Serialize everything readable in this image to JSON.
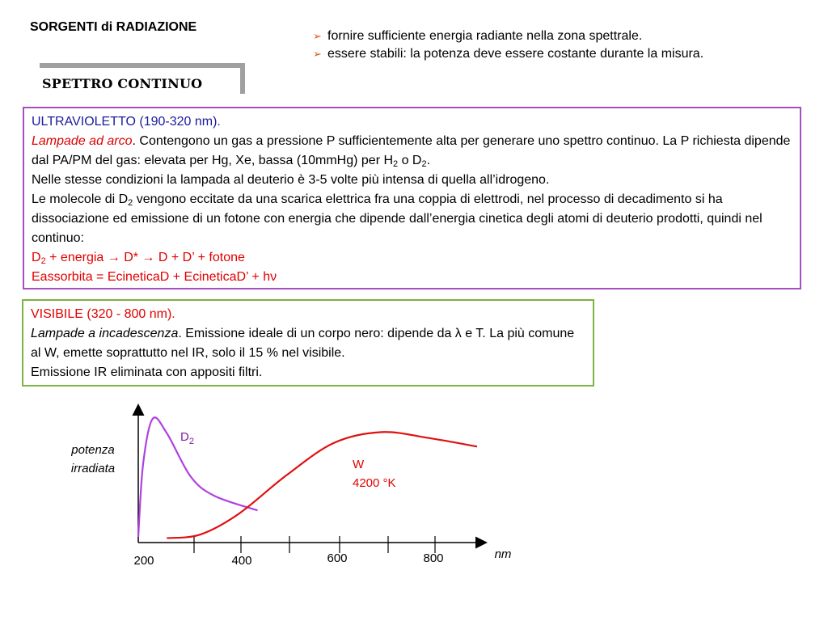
{
  "title": "SORGENTI di RADIAZIONE",
  "bullets": [
    "fornire sufficiente energia radiante nella zona spettrale.",
    "essere stabili: la potenza deve essere costante durante la misura."
  ],
  "section_label": "SPETTRO CONTINUO",
  "uv": {
    "heading": "ULTRAVIOLETTO (190-320 nm).",
    "lamp_type": "Lampade ad arco",
    "p1_a": ". Contengono un gas a pressione P sufficientemente alta per generare uno spettro continuo. La P richiesta dipende dal PA/PM del gas: elevata per Hg, Xe, bassa (10mmHg) per H",
    "sub_2": "2",
    "p1_b": " o D",
    "p1_c": ".",
    "p2": "Nelle stesse condizioni la lampada al deuterio è 3-5 volte più intensa di quella all’idrogeno.",
    "p3_a": "Le molecole di D",
    "p3_b": " vengono eccitate da una scarica elettrica fra una coppia di elettrodi, nel processo di decadimento si ha dissociazione ed emissione di un fotone con energia che dipende dall’energia cinetica degli atomi di deuterio prodotti, quindi nel continuo:",
    "eq1_a": "D",
    "eq1_b": " + energia  → D*  → D + D’ + fotone",
    "eq2": "Eassorbita = EcineticaD + EcineticaD’ + hν"
  },
  "visible": {
    "heading": "VISIBILE (320 - 800 nm).",
    "lamp_type": "Lampade a incadescenza",
    "text": ". Emissione ideale di un corpo nero: dipende da λ e T. La più comune al W, emette soprattutto nel IR, solo il 15  % nel visibile.",
    "text2": "Emissione IR eliminata con appositi filtri."
  },
  "chart_data": {
    "type": "line",
    "ylabel": [
      "potenza",
      "irradiata"
    ],
    "xlabel": "nm",
    "x_ticks": [
      "200",
      "400",
      "600",
      "800"
    ],
    "grid": false,
    "series": [
      {
        "name": "D",
        "name_sub": "2",
        "color": "#b040e0",
        "points": [
          [
            190,
            0.02
          ],
          [
            200,
            0.62
          ],
          [
            220,
            1.0
          ],
          [
            250,
            0.88
          ],
          [
            300,
            0.52
          ],
          [
            350,
            0.36
          ],
          [
            440,
            0.24
          ]
        ]
      },
      {
        "name": "W",
        "label_line2": "4200 °K",
        "color": "#e01010",
        "points": [
          [
            250,
            0.01
          ],
          [
            320,
            0.04
          ],
          [
            400,
            0.21
          ],
          [
            500,
            0.53
          ],
          [
            600,
            0.8
          ],
          [
            700,
            0.89
          ],
          [
            800,
            0.84
          ],
          [
            900,
            0.77
          ]
        ]
      }
    ]
  }
}
